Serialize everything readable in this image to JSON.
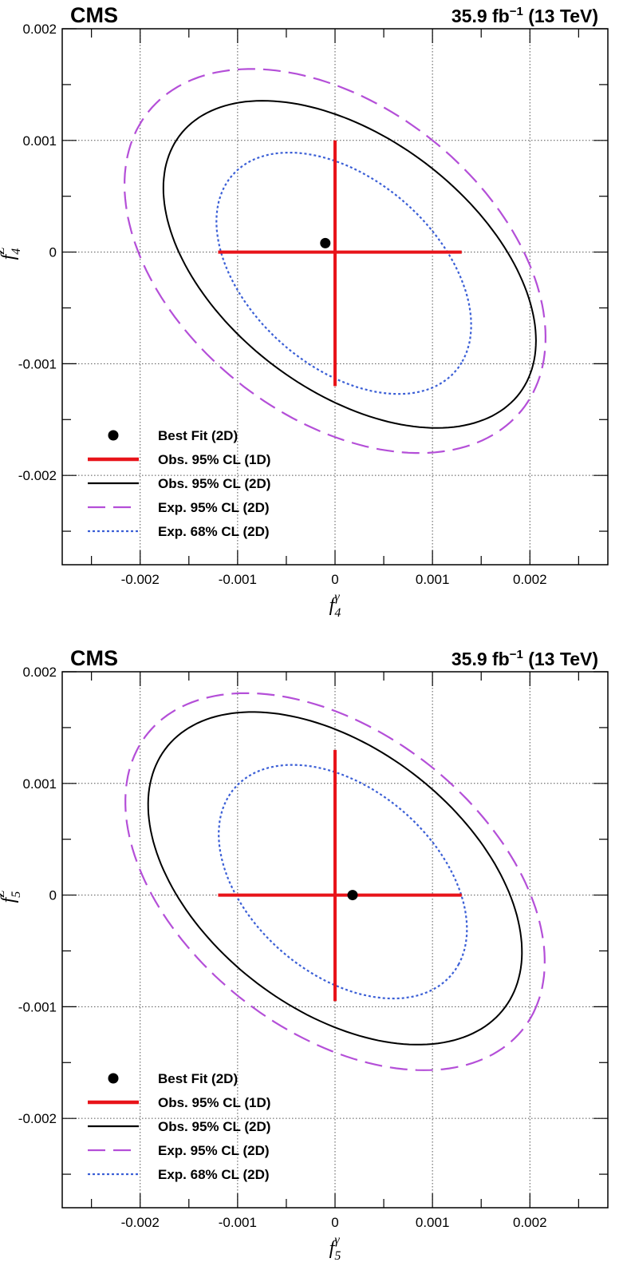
{
  "chart_data": [
    {
      "type": "scatter",
      "experiment": "CMS",
      "lumi_label": "35.9 fb",
      "lumi_exponent": "−1",
      "energy_label": "(13 TeV)",
      "xlabel": {
        "base": "f",
        "sub": "4",
        "sup": "γ"
      },
      "ylabel": {
        "base": "f",
        "sub": "4",
        "sup": "Z"
      },
      "xlim": [
        -0.0028,
        0.0028
      ],
      "ylim": [
        -0.0028,
        0.002
      ],
      "grid": true,
      "x_tick_labels": [
        "-0.002",
        "-0.001",
        "0",
        "0.001",
        "0.002"
      ],
      "x_tick_values": [
        -0.002,
        -0.001,
        0,
        0.001,
        0.002
      ],
      "y_tick_labels": [
        "-0.002",
        "-0.001",
        "0",
        "0.001",
        "0.002"
      ],
      "y_tick_values": [
        -0.002,
        -0.001,
        0,
        0.001,
        0.002
      ],
      "legend_position": "bottom-left",
      "series": [
        {
          "name": "Best Fit (2D)",
          "kind": "point",
          "x": -0.0001,
          "y": 8e-05,
          "color": "#000000"
        },
        {
          "name": "Obs. 95% CL (1D)",
          "kind": "cross",
          "x_interval": [
            -0.0012,
            0.0013
          ],
          "y_interval": [
            -0.0012,
            0.001
          ],
          "color": "#e8141a"
        },
        {
          "name": "Obs. 95% CL (2D)",
          "kind": "ellipse",
          "center": [
            0.00015,
            -0.00011
          ],
          "semi_axes": [
            0.0021,
            0.00118
          ],
          "angle_deg": -30,
          "color": "#000000",
          "dash": "solid"
        },
        {
          "name": "Exp. 95% CL (2D)",
          "kind": "ellipse",
          "center": [
            0.0,
            -8e-05
          ],
          "semi_axes": [
            0.00235,
            0.00145
          ],
          "angle_deg": -30,
          "color": "#b44fd8",
          "dash": "long-dash"
        },
        {
          "name": "Exp. 68% CL (2D)",
          "kind": "ellipse",
          "center": [
            9e-05,
            -0.00019
          ],
          "semi_axes": [
            0.00145,
            0.00088
          ],
          "angle_deg": -33,
          "color": "#3b5fd6",
          "dash": "dotted"
        }
      ]
    },
    {
      "type": "scatter",
      "experiment": "CMS",
      "lumi_label": "35.9 fb",
      "lumi_exponent": "−1",
      "energy_label": "(13 TeV)",
      "xlabel": {
        "base": "f",
        "sub": "5",
        "sup": "γ"
      },
      "ylabel": {
        "base": "f",
        "sub": "5",
        "sup": "Z"
      },
      "xlim": [
        -0.0028,
        0.0028
      ],
      "ylim": [
        -0.0028,
        0.002
      ],
      "grid": true,
      "x_tick_labels": [
        "-0.002",
        "-0.001",
        "0",
        "0.001",
        "0.002"
      ],
      "x_tick_values": [
        -0.002,
        -0.001,
        0,
        0.001,
        0.002
      ],
      "y_tick_labels": [
        "-0.002",
        "-0.001",
        "0",
        "0.001",
        "0.002"
      ],
      "y_tick_values": [
        -0.002,
        -0.001,
        0,
        0.001,
        0.002
      ],
      "legend_position": "bottom-left",
      "series": [
        {
          "name": "Best Fit (2D)",
          "kind": "point",
          "x": 0.00018,
          "y": 0.0,
          "color": "#000000"
        },
        {
          "name": "Obs. 95% CL (1D)",
          "kind": "cross",
          "x_interval": [
            -0.0012,
            0.0013
          ],
          "y_interval": [
            -0.00095,
            0.0013
          ],
          "color": "#e8141a"
        },
        {
          "name": "Obs. 95% CL (2D)",
          "kind": "ellipse",
          "center": [
            0.0,
            0.00015
          ],
          "semi_axes": [
            0.0021,
            0.00122
          ],
          "angle_deg": -30,
          "color": "#000000",
          "dash": "solid"
        },
        {
          "name": "Exp. 95% CL (2D)",
          "kind": "ellipse",
          "center": [
            0.0,
            0.00012
          ],
          "semi_axes": [
            0.00235,
            0.0014
          ],
          "angle_deg": -30,
          "color": "#b44fd8",
          "dash": "long-dash"
        },
        {
          "name": "Exp. 68% CL (2D)",
          "kind": "ellipse",
          "center": [
            8e-05,
            0.00012
          ],
          "semi_axes": [
            0.0014,
            0.00087
          ],
          "angle_deg": -32,
          "color": "#3b5fd6",
          "dash": "dotted"
        }
      ]
    }
  ]
}
